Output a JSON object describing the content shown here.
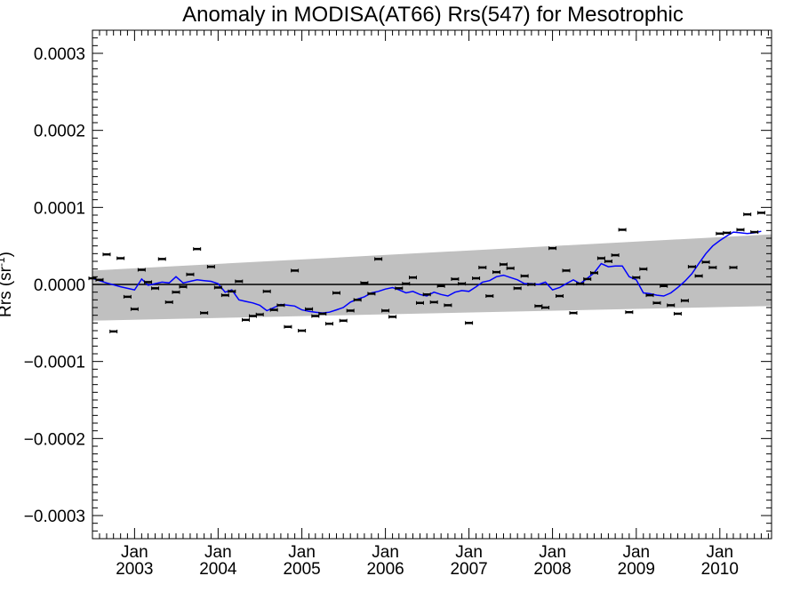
{
  "chart_data": {
    "type": "scatter",
    "title": "Anomaly in MODISA(AT66) Rrs(547) for Mesotrophic",
    "ylabel": "Rrs (sr",
    "ylabel_superscript": "-1",
    "ylabel_close": ")",
    "xlabel": "",
    "ylim": [
      -0.00033,
      0.00033
    ],
    "xlim": [
      "2002-07-01",
      "2010-08-15"
    ],
    "yticks": [
      {
        "value": 0.0003,
        "label": "0.0003"
      },
      {
        "value": 0.0002,
        "label": "0.0002"
      },
      {
        "value": 0.0001,
        "label": "0.0001"
      },
      {
        "value": 0.0,
        "label": "0.0000"
      },
      {
        "value": -0.0001,
        "label": "−0.0001"
      },
      {
        "value": -0.0002,
        "label": "−0.0002"
      },
      {
        "value": -0.0003,
        "label": "−0.0003"
      }
    ],
    "xticks": [
      {
        "date": "2003-01-01",
        "month": "Jan",
        "year": "2003"
      },
      {
        "date": "2004-01-01",
        "month": "Jan",
        "year": "2004"
      },
      {
        "date": "2005-01-01",
        "month": "Jan",
        "year": "2005"
      },
      {
        "date": "2006-01-01",
        "month": "Jan",
        "year": "2006"
      },
      {
        "date": "2007-01-01",
        "month": "Jan",
        "year": "2007"
      },
      {
        "date": "2008-01-01",
        "month": "Jan",
        "year": "2008"
      },
      {
        "date": "2009-01-01",
        "month": "Jan",
        "year": "2009"
      },
      {
        "date": "2010-01-01",
        "month": "Jan",
        "year": "2010"
      }
    ],
    "series": [
      {
        "kind": "monthly-anomaly-points",
        "color": "#000000",
        "points": [
          [
            "2002-07-01",
            8e-06
          ],
          [
            "2002-08-01",
            6e-06
          ],
          [
            "2002-09-01",
            3.9e-05
          ],
          [
            "2002-10-01",
            -6.1e-05
          ],
          [
            "2002-11-01",
            3.4e-05
          ],
          [
            "2002-12-01",
            -1.6e-05
          ],
          [
            "2003-01-01",
            -3.2e-05
          ],
          [
            "2003-02-01",
            1.9e-05
          ],
          [
            "2003-03-01",
            3e-06
          ],
          [
            "2003-04-01",
            -5e-06
          ],
          [
            "2003-05-01",
            3.3e-05
          ],
          [
            "2003-06-01",
            -2.3e-05
          ],
          [
            "2003-07-01",
            -1e-05
          ],
          [
            "2003-08-01",
            -3e-06
          ],
          [
            "2003-09-01",
            1.3e-05
          ],
          [
            "2003-10-01",
            4.6e-05
          ],
          [
            "2003-11-01",
            -3.7e-05
          ],
          [
            "2003-12-01",
            2.3e-05
          ],
          [
            "2004-01-01",
            -4e-06
          ],
          [
            "2004-02-01",
            -1.4e-05
          ],
          [
            "2004-03-01",
            -9e-06
          ],
          [
            "2004-04-01",
            4e-06
          ],
          [
            "2004-05-01",
            -4.6e-05
          ],
          [
            "2004-06-01",
            -4.1e-05
          ],
          [
            "2004-07-01",
            -3.9e-05
          ],
          [
            "2004-08-01",
            -9e-06
          ],
          [
            "2004-09-01",
            -3.3e-05
          ],
          [
            "2004-10-01",
            -2.7e-05
          ],
          [
            "2004-11-01",
            -5.5e-05
          ],
          [
            "2004-12-01",
            1.8e-05
          ],
          [
            "2005-01-01",
            -6e-05
          ],
          [
            "2005-02-01",
            -3.2e-05
          ],
          [
            "2005-03-01",
            -4.1e-05
          ],
          [
            "2005-04-01",
            -3.8e-05
          ],
          [
            "2005-05-01",
            -5.1e-05
          ],
          [
            "2005-06-01",
            -1.1e-05
          ],
          [
            "2005-07-01",
            -4.7e-05
          ],
          [
            "2005-08-01",
            -3.4e-05
          ],
          [
            "2005-09-01",
            -2e-05
          ],
          [
            "2005-10-01",
            2e-06
          ],
          [
            "2005-11-01",
            -1.2e-05
          ],
          [
            "2005-12-01",
            3.3e-05
          ],
          [
            "2006-01-01",
            -3.4e-05
          ],
          [
            "2006-02-01",
            -4.2e-05
          ],
          [
            "2006-03-01",
            -5e-06
          ],
          [
            "2006-04-01",
            1e-06
          ],
          [
            "2006-05-01",
            9e-06
          ],
          [
            "2006-06-01",
            -2.4e-05
          ],
          [
            "2006-07-01",
            -1.3e-05
          ],
          [
            "2006-08-01",
            -2.3e-05
          ],
          [
            "2006-09-01",
            -2e-06
          ],
          [
            "2006-10-01",
            -2.7e-05
          ],
          [
            "2006-11-01",
            7e-06
          ],
          [
            "2006-12-01",
            1e-06
          ],
          [
            "2007-01-01",
            -5e-05
          ],
          [
            "2007-02-01",
            8e-06
          ],
          [
            "2007-03-01",
            2.2e-05
          ],
          [
            "2007-04-01",
            -1.5e-05
          ],
          [
            "2007-05-01",
            1.6e-05
          ],
          [
            "2007-06-01",
            2.6e-05
          ],
          [
            "2007-07-01",
            2.1e-05
          ],
          [
            "2007-08-01",
            -5e-06
          ],
          [
            "2007-09-01",
            1.1e-05
          ],
          [
            "2007-10-01",
            0.0
          ],
          [
            "2007-11-01",
            -2.8e-05
          ],
          [
            "2007-12-01",
            -3e-05
          ],
          [
            "2008-01-01",
            4.7e-05
          ],
          [
            "2008-02-01",
            -1.5e-05
          ],
          [
            "2008-03-01",
            1.8e-05
          ],
          [
            "2008-04-01",
            -3.7e-05
          ],
          [
            "2008-05-01",
            1e-06
          ],
          [
            "2008-06-01",
            7e-06
          ],
          [
            "2008-07-01",
            1.5e-05
          ],
          [
            "2008-08-01",
            3.4e-05
          ],
          [
            "2008-09-01",
            3e-05
          ],
          [
            "2008-10-01",
            3.8e-05
          ],
          [
            "2008-11-01",
            7.1e-05
          ],
          [
            "2008-12-01",
            -3.6e-05
          ],
          [
            "2009-01-01",
            9e-06
          ],
          [
            "2009-02-01",
            2e-05
          ],
          [
            "2009-03-01",
            -1.4e-05
          ],
          [
            "2009-04-01",
            -2.4e-05
          ],
          [
            "2009-05-01",
            -2e-06
          ],
          [
            "2009-06-01",
            -2.7e-05
          ],
          [
            "2009-07-01",
            -3.8e-05
          ],
          [
            "2009-08-01",
            -2.1e-05
          ],
          [
            "2009-09-01",
            2.3e-05
          ],
          [
            "2009-10-01",
            1.1e-05
          ],
          [
            "2009-11-01",
            2.9e-05
          ],
          [
            "2009-12-01",
            2.2e-05
          ],
          [
            "2010-01-01",
            6.6e-05
          ],
          [
            "2010-02-01",
            6.7e-05
          ],
          [
            "2010-03-01",
            2.2e-05
          ],
          [
            "2010-04-01",
            7.1e-05
          ],
          [
            "2010-05-01",
            9.1e-05
          ],
          [
            "2010-06-01",
            6.8e-05
          ],
          [
            "2010-07-01",
            9.3e-05
          ]
        ]
      },
      {
        "kind": "running-mean",
        "color": "#0000ff",
        "points": [
          [
            "2002-07-01",
            8e-06
          ],
          [
            "2002-09-01",
            2e-06
          ],
          [
            "2002-11-01",
            -3e-06
          ],
          [
            "2003-01-01",
            -7e-06
          ],
          [
            "2003-02-01",
            7e-06
          ],
          [
            "2003-03-01",
            -1e-06
          ],
          [
            "2003-04-01",
            1e-06
          ],
          [
            "2003-05-01",
            3e-06
          ],
          [
            "2003-06-01",
            2e-06
          ],
          [
            "2003-07-01",
            1e-05
          ],
          [
            "2003-08-01",
            2e-06
          ],
          [
            "2003-09-01",
            4e-06
          ],
          [
            "2003-10-01",
            6e-06
          ],
          [
            "2003-11-01",
            5e-06
          ],
          [
            "2003-12-01",
            4e-06
          ],
          [
            "2004-01-01",
            1e-06
          ],
          [
            "2004-02-01",
            -1e-05
          ],
          [
            "2004-03-01",
            -7e-06
          ],
          [
            "2004-04-01",
            -2e-05
          ],
          [
            "2004-05-01",
            -2.2e-05
          ],
          [
            "2004-06-01",
            -2.4e-05
          ],
          [
            "2004-07-01",
            -2.7e-05
          ],
          [
            "2004-08-01",
            -3.4e-05
          ],
          [
            "2004-09-01",
            -3e-05
          ],
          [
            "2004-10-01",
            -2.6e-05
          ],
          [
            "2004-11-01",
            -2.7e-05
          ],
          [
            "2004-12-01",
            -2.8e-05
          ],
          [
            "2005-01-01",
            -3.3e-05
          ],
          [
            "2005-02-01",
            -3.5e-05
          ],
          [
            "2005-03-01",
            -3.6e-05
          ],
          [
            "2005-04-01",
            -3.7e-05
          ],
          [
            "2005-05-01",
            -3.6e-05
          ],
          [
            "2005-06-01",
            -3.3e-05
          ],
          [
            "2005-07-01",
            -3e-05
          ],
          [
            "2005-08-01",
            -2.3e-05
          ],
          [
            "2005-09-01",
            -1.9e-05
          ],
          [
            "2005-10-01",
            -1.6e-05
          ],
          [
            "2005-11-01",
            -1.1e-05
          ],
          [
            "2005-12-01",
            -9e-06
          ],
          [
            "2006-01-01",
            -6e-06
          ],
          [
            "2006-02-01",
            -4e-06
          ],
          [
            "2006-03-01",
            -7e-06
          ],
          [
            "2006-04-01",
            -1.1e-05
          ],
          [
            "2006-05-01",
            -9e-06
          ],
          [
            "2006-06-01",
            -1.3e-05
          ],
          [
            "2006-07-01",
            -1.5e-05
          ],
          [
            "2006-08-01",
            -1e-05
          ],
          [
            "2006-09-01",
            -1.3e-05
          ],
          [
            "2006-10-01",
            -1.5e-05
          ],
          [
            "2006-11-01",
            -1e-05
          ],
          [
            "2006-12-01",
            -8e-06
          ],
          [
            "2007-01-01",
            -9e-06
          ],
          [
            "2007-02-01",
            -3e-06
          ],
          [
            "2007-03-01",
            3e-06
          ],
          [
            "2007-04-01",
            5e-06
          ],
          [
            "2007-05-01",
            1e-05
          ],
          [
            "2007-06-01",
            1.2e-05
          ],
          [
            "2007-07-01",
            9e-06
          ],
          [
            "2007-08-01",
            6e-06
          ],
          [
            "2007-09-01",
            1e-06
          ],
          [
            "2007-10-01",
            1e-06
          ],
          [
            "2007-11-01",
            0.0
          ],
          [
            "2007-12-01",
            3e-06
          ],
          [
            "2008-01-01",
            -7e-06
          ],
          [
            "2008-02-01",
            -4e-06
          ],
          [
            "2008-03-01",
            1e-06
          ],
          [
            "2008-04-01",
            6e-06
          ],
          [
            "2008-05-01",
            1e-06
          ],
          [
            "2008-06-01",
            8e-06
          ],
          [
            "2008-07-01",
            1.5e-05
          ],
          [
            "2008-08-01",
            2.7e-05
          ],
          [
            "2008-09-01",
            2.3e-05
          ],
          [
            "2008-10-01",
            2.4e-05
          ],
          [
            "2008-11-01",
            2.4e-05
          ],
          [
            "2008-12-01",
            1e-05
          ],
          [
            "2009-01-01",
            6e-06
          ],
          [
            "2009-02-01",
            -1.1e-05
          ],
          [
            "2009-03-01",
            -1.2e-05
          ],
          [
            "2009-04-01",
            -1.4e-05
          ],
          [
            "2009-05-01",
            -1.5e-05
          ],
          [
            "2009-06-01",
            -1.1e-05
          ],
          [
            "2009-07-01",
            -4e-06
          ],
          [
            "2009-08-01",
            4e-06
          ],
          [
            "2009-09-01",
            1.4e-05
          ],
          [
            "2009-10-01",
            2.7e-05
          ],
          [
            "2009-11-01",
            4e-05
          ],
          [
            "2009-12-01",
            5e-05
          ],
          [
            "2010-01-01",
            5.7e-05
          ],
          [
            "2010-02-01",
            6.3e-05
          ],
          [
            "2010-03-01",
            6.8e-05
          ],
          [
            "2010-04-01",
            6.7e-05
          ],
          [
            "2010-05-01",
            6.6e-05
          ],
          [
            "2010-06-01",
            6.7e-05
          ],
          [
            "2010-07-01",
            6.9e-05
          ]
        ]
      }
    ],
    "band": {
      "color": "#c0c0c0",
      "start": {
        "date": "2002-07-01",
        "upper": 1.8e-05,
        "lower": -4.7e-05
      },
      "end": {
        "date": "2010-08-15",
        "upper": 6.5e-05,
        "lower": -2.8e-05
      }
    },
    "zero_line": 0.0,
    "grid": false,
    "legend": "none"
  }
}
